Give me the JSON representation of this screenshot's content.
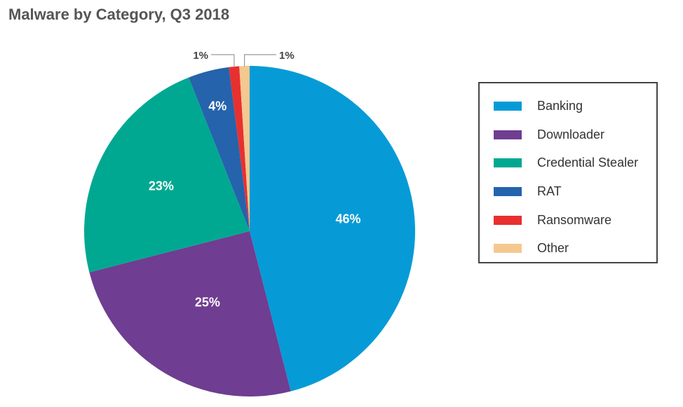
{
  "chart_data": {
    "type": "pie",
    "title": "Malware by Category, Q3 2018",
    "categories": [
      "Banking",
      "Downloader",
      "Credential Stealer",
      "RAT",
      "Ransomware",
      "Other"
    ],
    "values": [
      46,
      25,
      23,
      4,
      1,
      1
    ],
    "data_labels": [
      "46%",
      "25%",
      "23%",
      "4%",
      "1%",
      "1%"
    ],
    "colors": [
      "#069bd6",
      "#6f3d91",
      "#00a891",
      "#2563ac",
      "#e8302f",
      "#f5c890"
    ],
    "legend_placement": "right",
    "start_angle": "12 o'clock",
    "direction": "clockwise"
  }
}
